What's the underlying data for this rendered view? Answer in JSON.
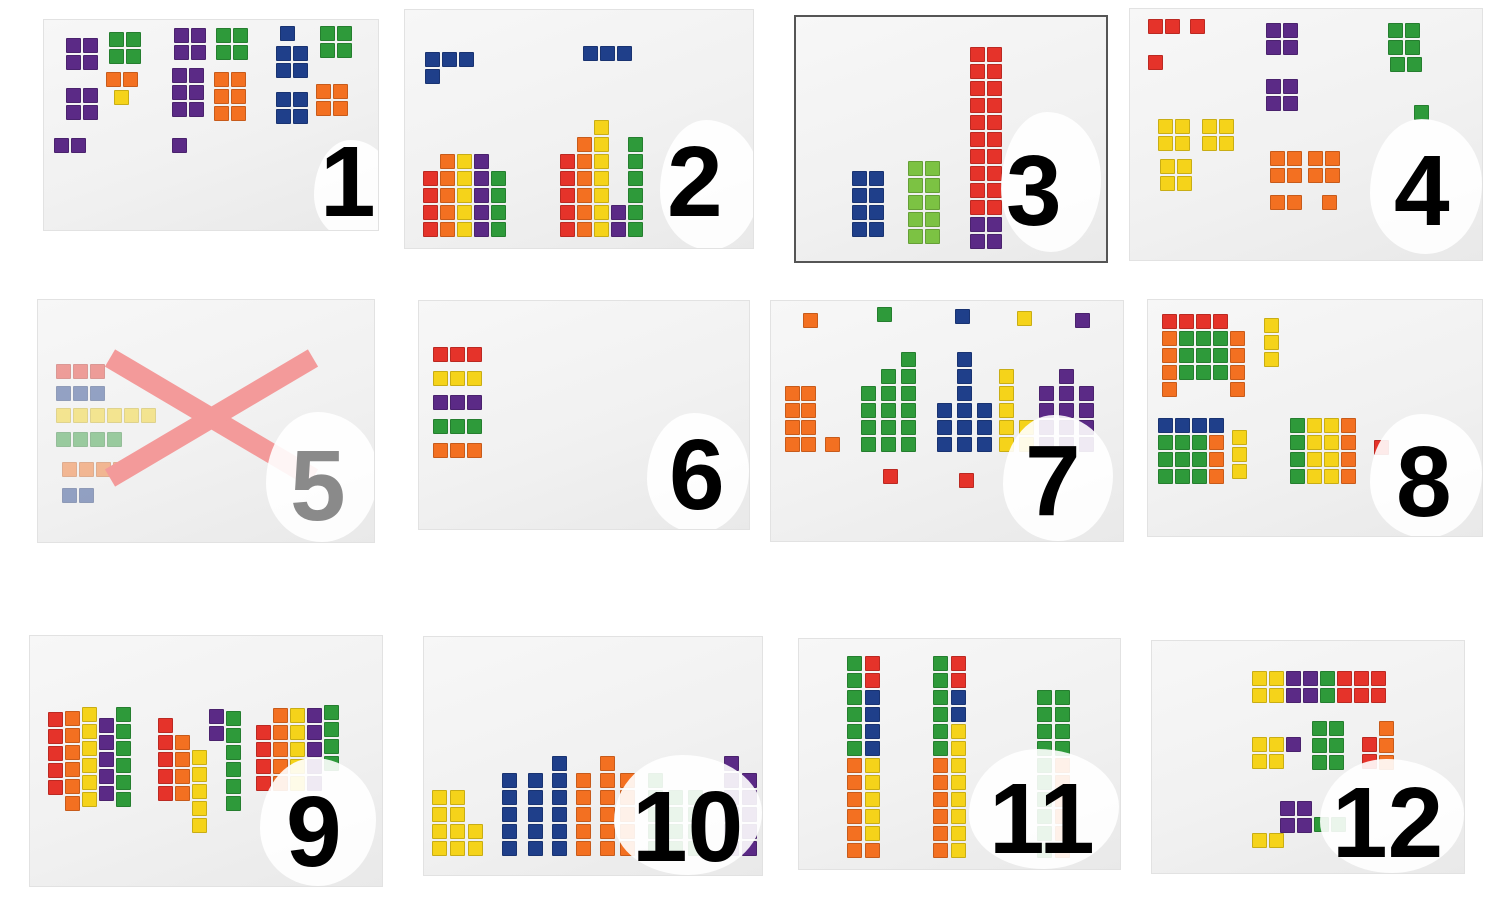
{
  "colors": {
    "red": "#e5332a",
    "orange": "#f37021",
    "yellow": "#f5d31a",
    "green": "#2e9a3a",
    "blue": "#1f3f8a",
    "purple": "#5b2a86",
    "lime": "#7cc243",
    "cross": "#f39a9a"
  },
  "photos": [
    {
      "label": "1"
    },
    {
      "label": "2"
    },
    {
      "label": "3"
    },
    {
      "label": "4"
    },
    {
      "label": "5",
      "crossed_out": true
    },
    {
      "label": "6"
    },
    {
      "label": "7"
    },
    {
      "label": "8"
    },
    {
      "label": "9"
    },
    {
      "label": "10"
    },
    {
      "label": "11"
    },
    {
      "label": "12"
    }
  ]
}
